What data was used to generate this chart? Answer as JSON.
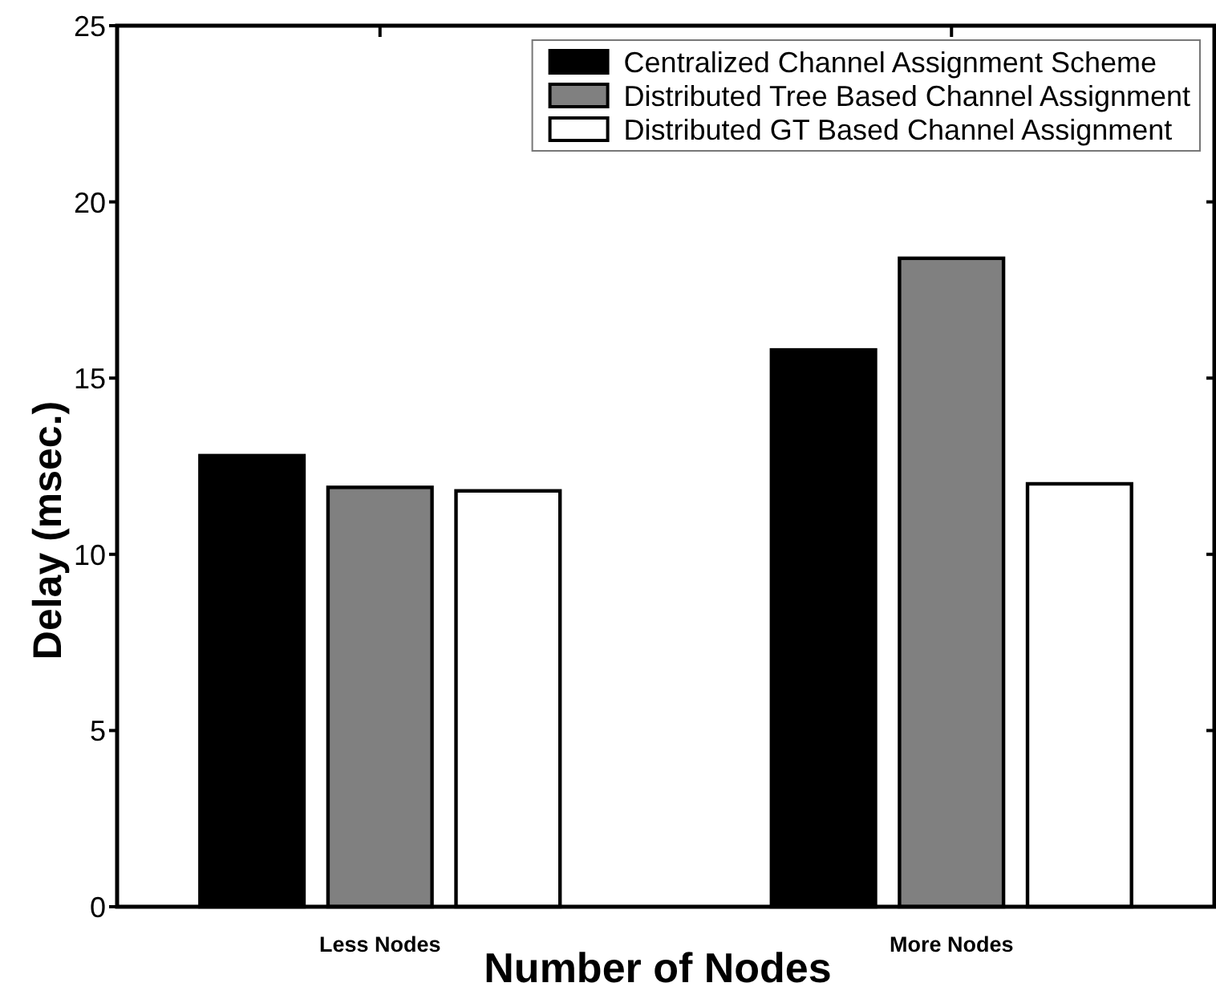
{
  "chart_data": {
    "type": "bar",
    "xlabel": "Number of Nodes",
    "ylabel": "Delay (msec.)",
    "categories": [
      "Less Nodes",
      "More Nodes"
    ],
    "series": [
      {
        "name": "Centralized Channel Assignment Scheme",
        "color": "#000000",
        "values": [
          12.8,
          15.8
        ]
      },
      {
        "name": "Distributed Tree Based Channel Assignment",
        "color": "#808080",
        "values": [
          11.9,
          18.4
        ]
      },
      {
        "name": "Distributed GT Based Channel Assignment",
        "color": "#ffffff",
        "values": [
          11.8,
          12.0
        ]
      }
    ],
    "ylim": [
      0,
      25
    ],
    "yticks": [
      0,
      5,
      10,
      15,
      20,
      25
    ],
    "legend": "top right"
  }
}
